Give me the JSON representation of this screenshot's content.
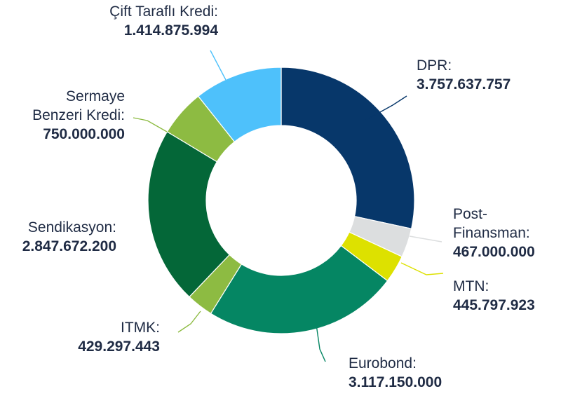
{
  "chart_data": {
    "type": "pie",
    "variant": "donut",
    "start_angle_deg": 0,
    "direction": "clockwise",
    "slices": [
      {
        "key": "dpr",
        "label_lines": [
          "DPR:"
        ],
        "value": 3757637757,
        "value_text": "3.757.637.757",
        "color": "#07376a"
      },
      {
        "key": "post",
        "label_lines": [
          "Post-",
          "Finansman:"
        ],
        "value": 467000000,
        "value_text": "467.000.000",
        "color": "#dcdedf"
      },
      {
        "key": "mtn",
        "label_lines": [
          "MTN:"
        ],
        "value": 445797923,
        "value_text": "445.797.923",
        "color": "#dde100"
      },
      {
        "key": "eurobond",
        "label_lines": [
          "Eurobond:"
        ],
        "value": 3117150000,
        "value_text": "3.117.150.000",
        "color": "#058663"
      },
      {
        "key": "itmk",
        "label_lines": [
          "ITMK:"
        ],
        "value": 429297443,
        "value_text": "429.297.443",
        "color": "#8dbb42"
      },
      {
        "key": "sendikasyon",
        "label_lines": [
          "Sendikasyon:"
        ],
        "value": 2847672200,
        "value_text": "2.847.672.200",
        "color": "#046738"
      },
      {
        "key": "sermaye",
        "label_lines": [
          "Sermaye",
          "Benzeri Kredi:"
        ],
        "value": 750000000,
        "value_text": "750.000.000",
        "color": "#8dbb42"
      },
      {
        "key": "cift",
        "label_lines": [
          "Çift Taraflı Kredi:"
        ],
        "value": 1414875994,
        "value_text": "1.414.875.994",
        "color": "#4ec1fb"
      }
    ]
  }
}
